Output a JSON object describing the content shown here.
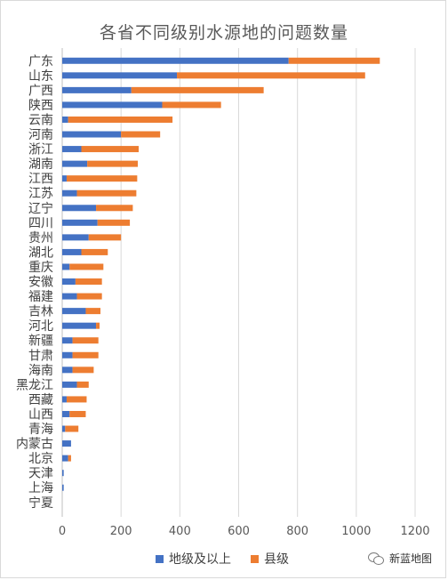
{
  "chart_data": {
    "type": "bar",
    "orientation": "horizontal",
    "stacked": true,
    "title": "各省不同级别水源地的问题数量",
    "categories": [
      "广东",
      "山东",
      "广西",
      "陕西",
      "云南",
      "河南",
      "浙江",
      "湖南",
      "江西",
      "江苏",
      "辽宁",
      "四川",
      "贵州",
      "湖北",
      "重庆",
      "安徽",
      "福建",
      "吉林",
      "河北",
      "新疆",
      "甘肃",
      "海南",
      "黑龙江",
      "西藏",
      "山西",
      "青海",
      "内蒙古",
      "北京",
      "天津",
      "上海",
      "宁夏"
    ],
    "series": [
      {
        "name": "地级及以上",
        "color": "#4472c4",
        "values": [
          770,
          390,
          235,
          340,
          20,
          200,
          65,
          85,
          15,
          50,
          115,
          120,
          90,
          65,
          25,
          45,
          50,
          80,
          115,
          35,
          35,
          35,
          50,
          15,
          25,
          10,
          30,
          20,
          5,
          5,
          0
        ]
      },
      {
        "name": "县级",
        "color": "#ed7d31",
        "values": [
          310,
          640,
          450,
          200,
          355,
          133,
          195,
          172,
          240,
          202,
          125,
          110,
          110,
          90,
          115,
          90,
          85,
          50,
          12,
          88,
          88,
          72,
          40,
          68,
          55,
          45,
          0,
          10,
          0,
          0,
          0
        ]
      }
    ],
    "xlim": [
      0,
      1200
    ],
    "xticks": [
      "0",
      "200",
      "400",
      "600",
      "800",
      "1000",
      "1200"
    ],
    "grid": true,
    "legend_position": "bottom"
  },
  "legend": {
    "items": [
      {
        "label": "地级及以上",
        "color": "#4472c4"
      },
      {
        "label": "县级",
        "color": "#ed7d31"
      }
    ]
  },
  "watermark": {
    "text": "新蓝地图",
    "icon": "wechat-icon"
  }
}
